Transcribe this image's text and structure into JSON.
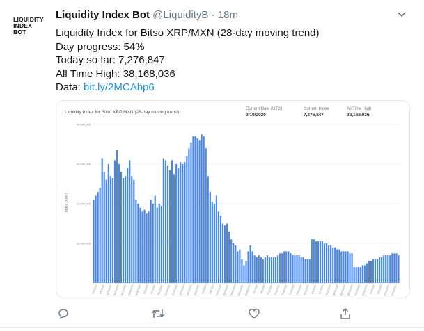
{
  "tweet": {
    "avatar_text": [
      "LIQUIDITY",
      "INDEX",
      "BOT"
    ],
    "display_name": "Liquidity Index Bot",
    "handle": "@LiquidityB",
    "separator": "·",
    "time": "18m",
    "lines": [
      "Liquidity Index for Bitso XRP/MXN (28-day moving trend)",
      "Day progress: 54%",
      "Today so far: 7,276,847",
      "All Time High: 38,168,036"
    ],
    "data_label": "Data: ",
    "link_text": "bit.ly/2MCAbp6",
    "link_color": "#1b95e0"
  },
  "card": {
    "title": "Liquidity Index for Bitso XRP/MXN (28-day moving trend)",
    "stats": [
      {
        "label": "Current Date (UTC)",
        "value": "9/19/2020"
      },
      {
        "label": "Current Index",
        "value": "7,276,847"
      },
      {
        "label": "All Time High",
        "value": "38,168,036"
      }
    ]
  },
  "chart_data": {
    "type": "bar",
    "ylabel": "Index (XRP)",
    "ylim": [
      0,
      40000000
    ],
    "yticks": [
      "40,000,000",
      "30,000,000",
      "20,000,000",
      "10,000,000"
    ],
    "bar_color": "#4a86e8",
    "grid": true,
    "values": [
      21000000,
      22000000,
      23000000,
      24000000,
      31500000,
      28000000,
      26000000,
      30000000,
      27000000,
      26500000,
      31000000,
      33500000,
      30000000,
      28000000,
      26500000,
      27000000,
      29000000,
      31000000,
      27000000,
      26000000,
      21000000,
      20000000,
      19000000,
      18000000,
      18500000,
      17500000,
      18000000,
      21000000,
      20000000,
      22000000,
      19000000,
      20000000,
      19500000,
      31500000,
      31000000,
      29500000,
      28500000,
      31000000,
      27500000,
      30000000,
      29000000,
      30500000,
      30000000,
      30500000,
      32000000,
      34000000,
      35500000,
      37000000,
      37000000,
      36500000,
      36000000,
      37500000,
      37000000,
      34000000,
      27000000,
      23000000,
      20500000,
      20000000,
      22000000,
      18000000,
      17000000,
      15000000,
      14500000,
      15000000,
      13000000,
      11000000,
      10000000,
      9500000,
      8000000,
      8500000,
      6000000,
      4500000,
      5500000,
      8000000,
      9500000,
      8000000,
      7000000,
      6500000,
      7000000,
      6500000,
      6000000,
      6500000,
      7000000,
      6500000,
      6500000,
      6500000,
      6500000,
      7000000,
      7500000,
      7500000,
      8000000,
      8000000,
      8000000,
      7500000,
      7000000,
      7000000,
      7000000,
      7000000,
      6500000,
      6500000,
      6000000,
      6000000,
      6000000,
      11000000,
      11000000,
      10500000,
      10500000,
      10500000,
      10500000,
      10000000,
      10000000,
      9500000,
      9500000,
      9000000,
      9000000,
      8500000,
      8500000,
      8000000,
      8000000,
      8000000,
      8000000,
      7500000,
      7500000,
      4000000,
      4000000,
      4000000,
      4000000,
      4500000,
      4500000,
      5000000,
      5500000,
      5500000,
      6000000,
      6000000,
      6000000,
      6500000,
      6500000,
      7000000,
      7000000,
      7000000,
      7000000,
      7500000,
      7500000,
      7500000,
      7000000
    ],
    "xlabels": [
      "4/5/2020",
      "4/9/2020",
      "4/13/2020",
      "4/17/2020",
      "4/21/2020",
      "4/25/2020",
      "4/29/2020",
      "5/3/2020",
      "5/7/2020",
      "5/11/2020",
      "5/15/2020",
      "5/19/2020",
      "5/23/2020",
      "5/27/2020",
      "5/31/2020",
      "6/4/2020",
      "6/8/2020",
      "6/12/2020",
      "6/16/2020",
      "6/20/2020",
      "6/24/2020",
      "6/28/2020",
      "7/2/2020",
      "7/6/2020",
      "7/10/2020",
      "7/14/2020",
      "7/18/2020",
      "7/22/2020",
      "7/26/2020",
      "7/30/2020",
      "8/3/2020",
      "8/7/2020",
      "8/11/2020",
      "8/15/2020",
      "8/19/2020",
      "8/23/2020",
      "8/27/2020",
      "8/31/2020",
      "9/4/2020",
      "9/8/2020",
      "9/12/2020",
      "9/16/2020"
    ]
  }
}
